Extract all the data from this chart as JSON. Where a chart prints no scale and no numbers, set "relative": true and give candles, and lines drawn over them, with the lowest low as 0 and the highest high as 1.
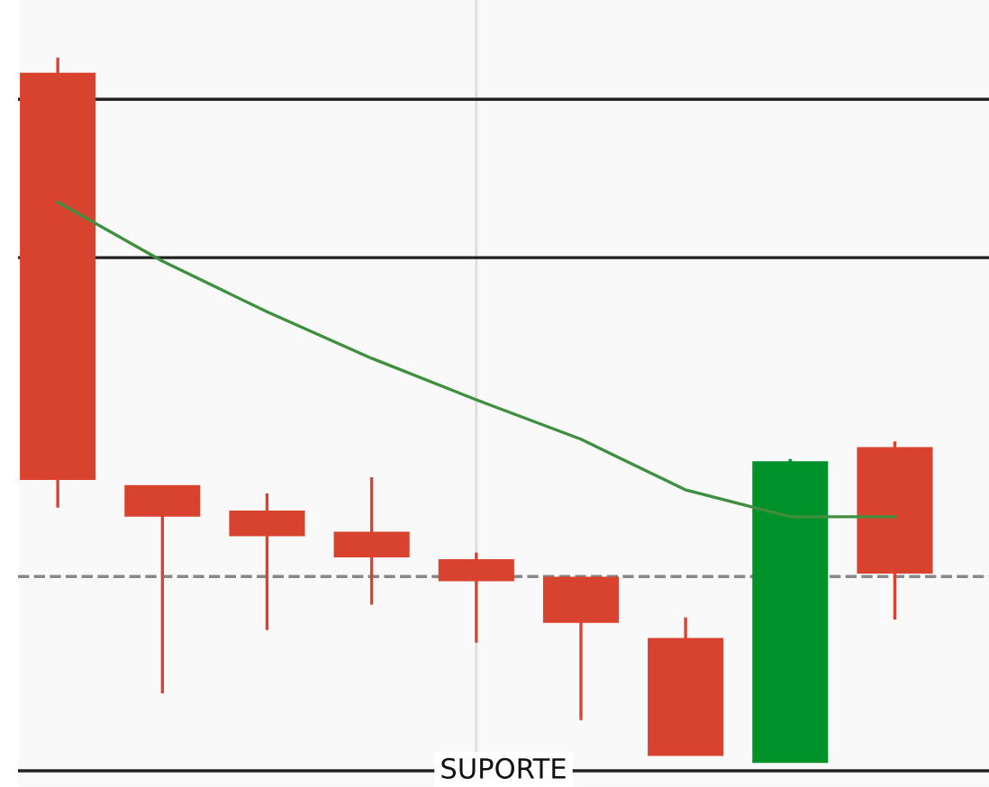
{
  "chart_data": {
    "type": "candlestick",
    "relative": true,
    "categories": [
      null,
      null,
      null,
      null,
      null,
      null,
      null,
      null,
      null
    ],
    "ohlc": [
      [
        0.977,
        1.0,
        0.361,
        0.402
      ],
      [
        0.391,
        0.391,
        0.097,
        0.35
      ],
      [
        0.355,
        0.381,
        0.187,
        0.322
      ],
      [
        0.325,
        0.404,
        0.223,
        0.292
      ],
      [
        0.286,
        0.297,
        0.169,
        0.258
      ],
      [
        0.261,
        0.263,
        0.059,
        0.199
      ],
      [
        0.174,
        0.205,
        0.01,
        0.01
      ],
      [
        0.0,
        0.43,
        0.0,
        0.425
      ],
      [
        0.445,
        0.455,
        0.202,
        0.269
      ]
    ],
    "colors": [
      "#d8432f",
      "#d8432f",
      "#d8432f",
      "#d8432f",
      "#d8432f",
      "#d8432f",
      "#d8432f",
      "#00922a",
      "#d8432f"
    ],
    "series": [
      {
        "type": "line",
        "color": "#3f8f3f",
        "values": [
          0.795,
          0.711,
          0.639,
          0.573,
          0.514,
          0.458,
          0.386,
          0.348,
          0.348
        ]
      }
    ],
    "ref_lines": [
      {
        "axis": "y",
        "value": 0.941,
        "color": "#222222",
        "line_style": "solid"
      },
      {
        "axis": "y",
        "value": 0.716,
        "color": "#222222",
        "line_style": "solid"
      },
      {
        "axis": "y",
        "value": 0.263,
        "color": "#888888",
        "line_style": "dashed"
      },
      {
        "axis": "y",
        "value": -0.013,
        "color": "#222222",
        "line_style": "solid",
        "label": "SUPORTE"
      }
    ],
    "grid": false,
    "legend": false
  }
}
